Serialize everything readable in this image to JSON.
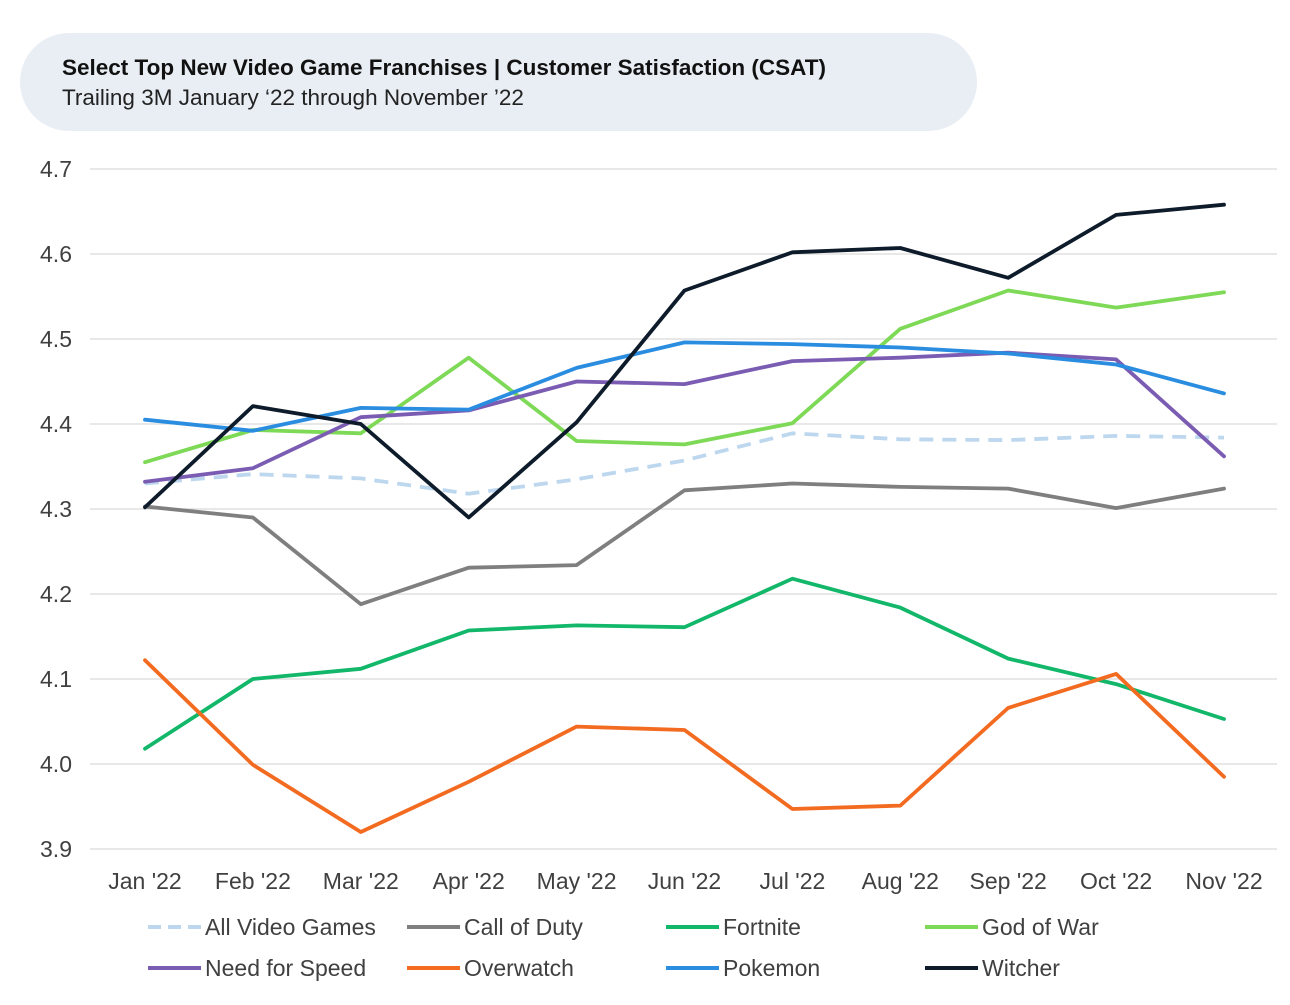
{
  "header": {
    "title": "Select Top New Video Game Franchises | Customer Satisfaction (CSAT)",
    "subtitle": "Trailing 3M January ‘22 through November ’22"
  },
  "chart_data": {
    "type": "line",
    "categories": [
      "Jan '22",
      "Feb '22",
      "Mar '22",
      "Apr '22",
      "May '22",
      "Jun '22",
      "Jul '22",
      "Aug '22",
      "Sep '22",
      "Oct '22",
      "Nov '22"
    ],
    "ylim": [
      3.9,
      4.7
    ],
    "yticks": [
      "3.9",
      "4.0",
      "4.1",
      "4.2",
      "4.3",
      "4.4",
      "4.5",
      "4.6",
      "4.7"
    ],
    "grid": true,
    "legend_position": "bottom",
    "series": [
      {
        "name": "All Video Games",
        "color": "#bdd7ee",
        "dashed": true,
        "values": [
          4.33,
          4.341,
          4.336,
          4.318,
          4.335,
          4.357,
          4.389,
          4.382,
          4.381,
          4.386,
          4.384
        ]
      },
      {
        "name": "Call of Duty",
        "color": "#7f7f7f",
        "dashed": false,
        "values": [
          4.303,
          4.29,
          4.188,
          4.231,
          4.234,
          4.322,
          4.33,
          4.326,
          4.324,
          4.301,
          4.324
        ]
      },
      {
        "name": "Fortnite",
        "color": "#12b76a",
        "dashed": false,
        "values": [
          4.018,
          4.1,
          4.112,
          4.157,
          4.163,
          4.161,
          4.218,
          4.184,
          4.124,
          4.094,
          4.053
        ]
      },
      {
        "name": "God of War",
        "color": "#7ed957",
        "dashed": false,
        "values": [
          4.355,
          4.393,
          4.389,
          4.478,
          4.38,
          4.376,
          4.401,
          4.512,
          4.557,
          4.537,
          4.555
        ]
      },
      {
        "name": "Need for Speed",
        "color": "#7b5cb3",
        "dashed": false,
        "values": [
          4.332,
          4.348,
          4.408,
          4.416,
          4.45,
          4.447,
          4.474,
          4.478,
          4.484,
          4.476,
          4.362
        ]
      },
      {
        "name": "Overwatch",
        "color": "#f26b21",
        "dashed": false,
        "values": [
          4.122,
          3.999,
          3.92,
          3.979,
          4.044,
          4.04,
          3.947,
          3.951,
          4.066,
          4.106,
          3.985
        ]
      },
      {
        "name": "Pokemon",
        "color": "#2a8de0",
        "dashed": false,
        "values": [
          4.405,
          4.392,
          4.419,
          4.417,
          4.466,
          4.496,
          4.494,
          4.49,
          4.483,
          4.47,
          4.436
        ]
      },
      {
        "name": "Witcher",
        "color": "#0d1b2a",
        "dashed": false,
        "values": [
          4.302,
          4.421,
          4.4,
          4.29,
          4.402,
          4.557,
          4.602,
          4.607,
          4.572,
          4.646,
          4.658
        ]
      }
    ]
  }
}
